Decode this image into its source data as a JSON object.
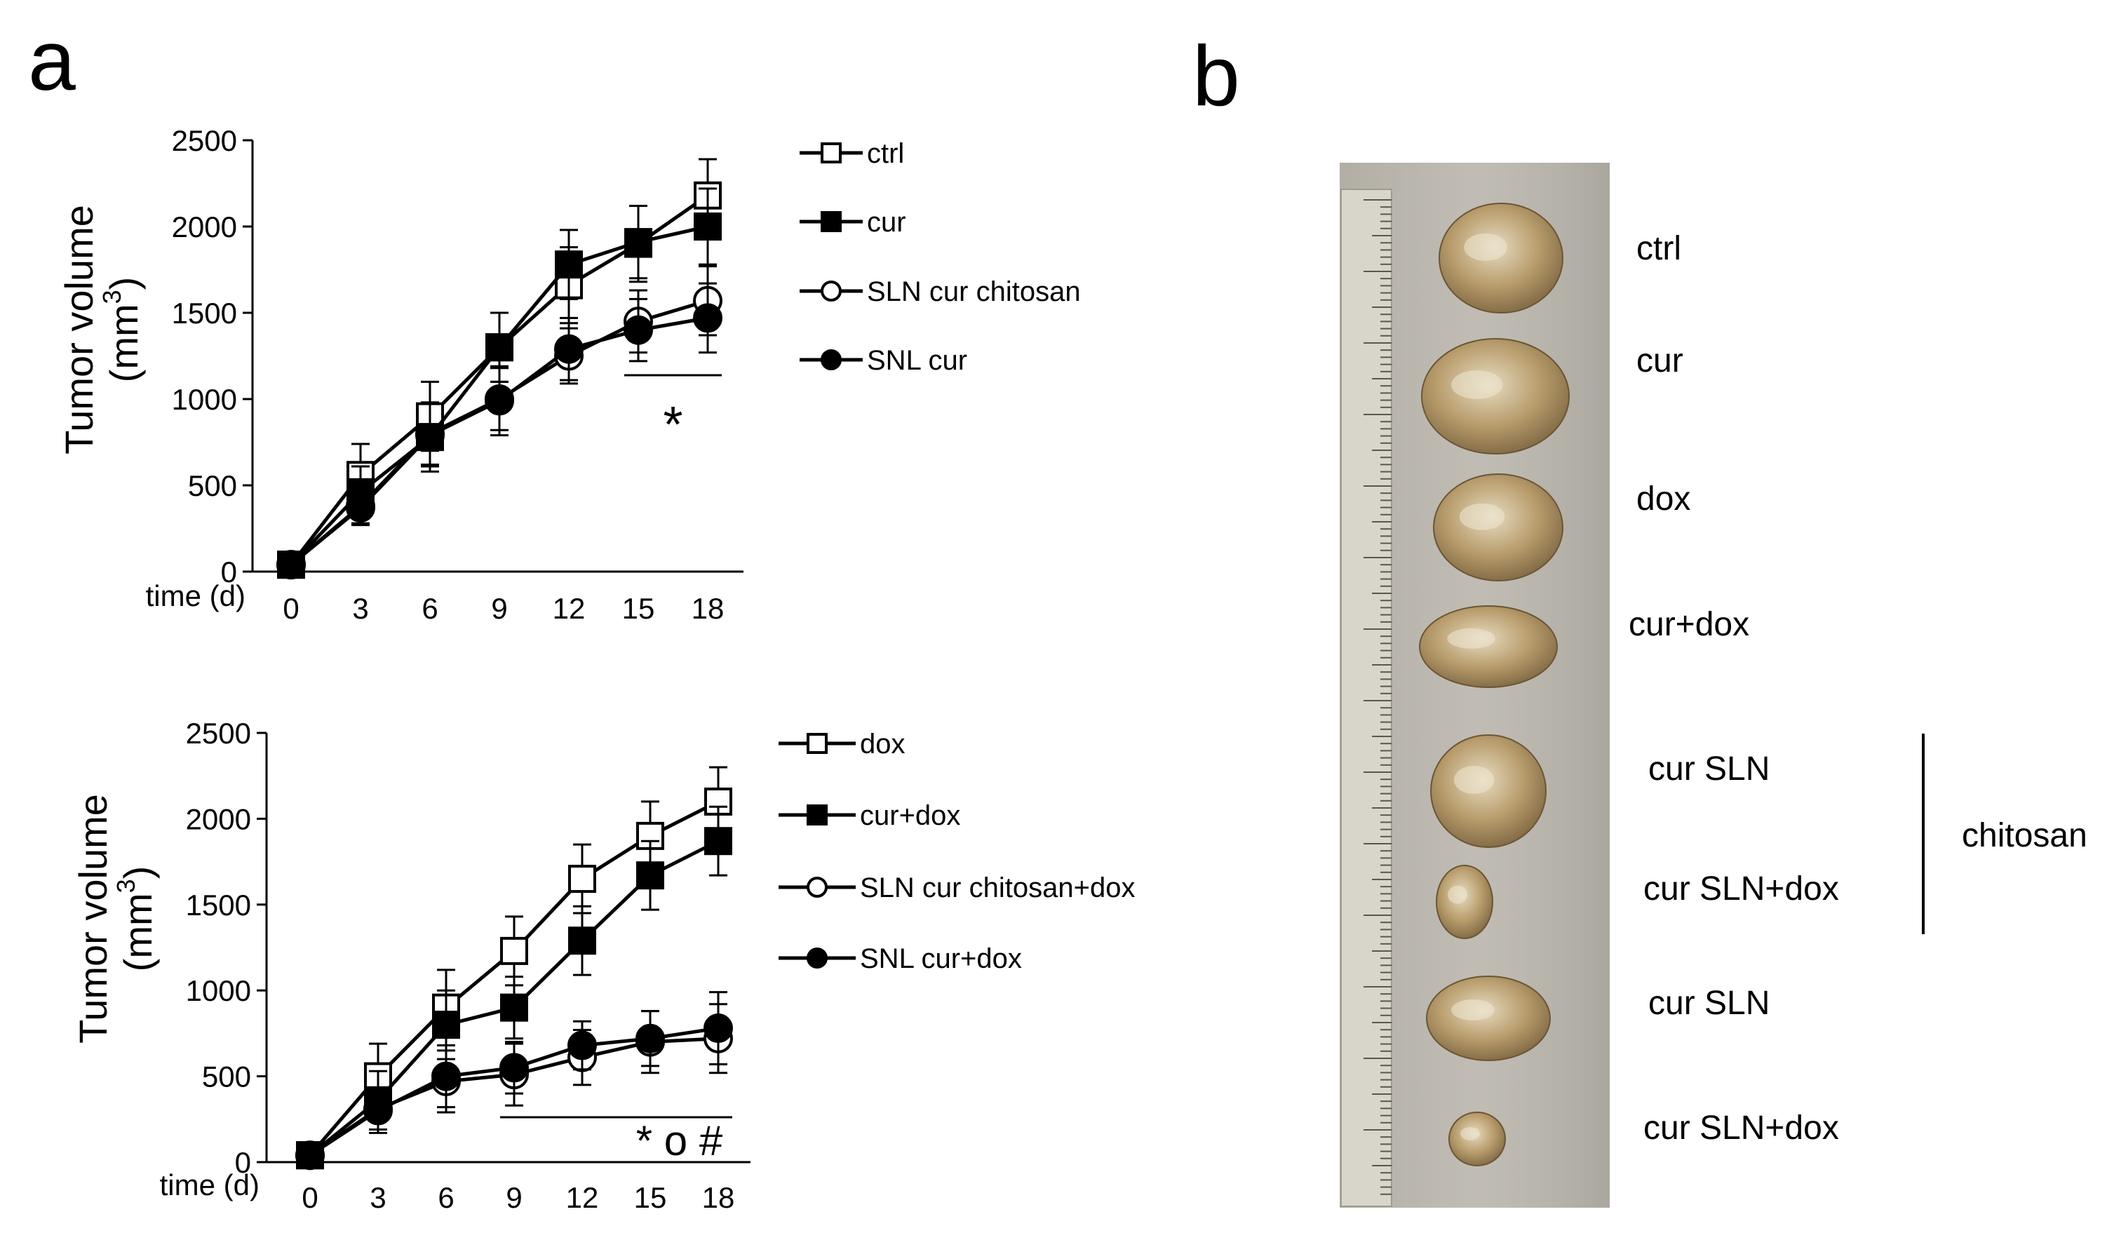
{
  "panel_a": {
    "label": "a",
    "ylabel_line1": "Tumor volume",
    "ylabel_line2_prefix": "(mm",
    "ylabel_line2_sup": "3",
    "ylabel_line2_suffix": ")",
    "xlabel": "time (d)"
  },
  "panel_b": {
    "label": "b",
    "sample_labels": [
      "ctrl",
      "cur",
      "dox",
      "cur+dox",
      "cur SLN",
      "cur SLN+dox",
      "cur SLN",
      "cur SLN+dox"
    ],
    "group_label": "chitosan"
  },
  "colors": {
    "ink": "#000000",
    "photo_bg": "#b9b6ae",
    "ruler": "#d9d6cc",
    "tumor": "#a8926a"
  },
  "chart_data": [
    {
      "type": "line",
      "title": "",
      "xlabel": "time (d)",
      "ylabel": "Tumor volume (mm3)",
      "x": [
        0,
        3,
        6,
        9,
        12,
        15,
        18
      ],
      "ylim": [
        0,
        2500
      ],
      "yticks": [
        0,
        500,
        1000,
        1500,
        2000,
        2500
      ],
      "legend_position": "right",
      "series": [
        {
          "name": "ctrl",
          "marker": "open-square",
          "values": [
            40,
            560,
            900,
            1300,
            1660,
            1900,
            2180
          ],
          "errors": [
            20,
            180,
            200,
            200,
            220,
            220,
            210
          ]
        },
        {
          "name": "cur",
          "marker": "filled-square",
          "values": [
            40,
            460,
            780,
            1300,
            1780,
            1910,
            2000
          ],
          "errors": [
            20,
            150,
            200,
            200,
            200,
            210,
            220
          ]
        },
        {
          "name": "SLN cur chitosan",
          "marker": "open-circle",
          "values": [
            40,
            380,
            800,
            1000,
            1250,
            1450,
            1570
          ],
          "errors": [
            20,
            100,
            180,
            180,
            160,
            180,
            200
          ]
        },
        {
          "name": "SNL cur",
          "marker": "filled-circle",
          "values": [
            40,
            370,
            790,
            990,
            1290,
            1400,
            1470
          ],
          "errors": [
            20,
            100,
            180,
            200,
            180,
            180,
            200
          ]
        }
      ],
      "annotations": [
        {
          "text": "*",
          "x_start": 15,
          "x_end": 18
        }
      ]
    },
    {
      "type": "line",
      "title": "",
      "xlabel": "time (d)",
      "ylabel": "Tumor volume (mm3)",
      "x": [
        0,
        3,
        6,
        9,
        12,
        15,
        18
      ],
      "ylim": [
        0,
        2500
      ],
      "yticks": [
        0,
        500,
        1000,
        1500,
        2000,
        2500
      ],
      "legend_position": "right",
      "series": [
        {
          "name": "dox",
          "marker": "open-square",
          "values": [
            40,
            500,
            900,
            1230,
            1650,
            1900,
            2100
          ],
          "errors": [
            20,
            190,
            220,
            200,
            200,
            200,
            200
          ]
        },
        {
          "name": "cur+dox",
          "marker": "filled-square",
          "values": [
            40,
            360,
            800,
            900,
            1290,
            1670,
            1870
          ],
          "errors": [
            20,
            170,
            200,
            180,
            200,
            200,
            200
          ]
        },
        {
          "name": "SLN cur chitosan+dox",
          "marker": "open-circle",
          "values": [
            40,
            310,
            470,
            510,
            610,
            700,
            720
          ],
          "errors": [
            20,
            120,
            180,
            180,
            160,
            180,
            200
          ]
        },
        {
          "name": "SNL cur+dox",
          "marker": "filled-circle",
          "values": [
            40,
            300,
            500,
            550,
            680,
            720,
            780
          ],
          "errors": [
            20,
            130,
            180,
            150,
            140,
            160,
            210
          ]
        }
      ],
      "annotations": [
        {
          "text": "* o #",
          "x_start": 9,
          "x_end": 18
        }
      ]
    }
  ]
}
